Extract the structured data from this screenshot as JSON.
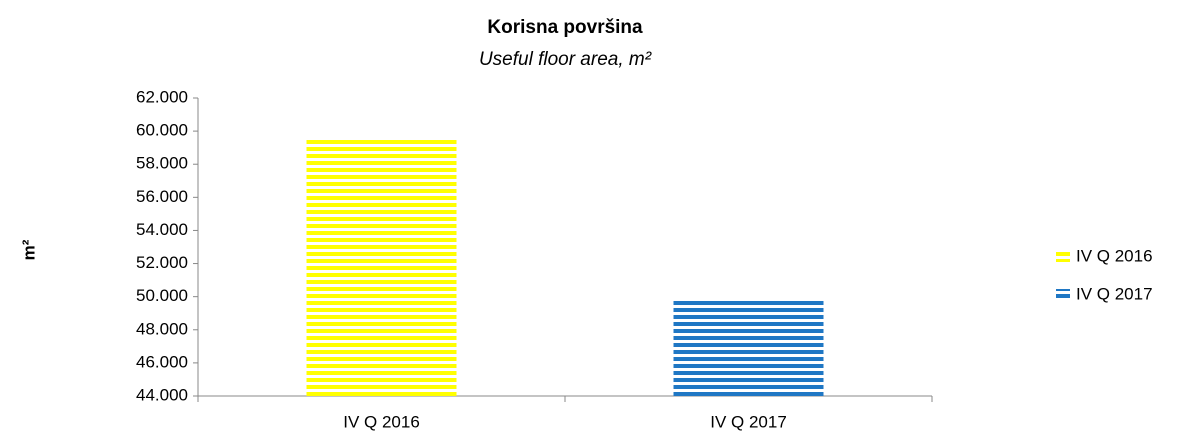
{
  "chart_data": {
    "type": "bar",
    "title": "Korisna površina",
    "subtitle": "Useful floor area, m²",
    "y_label": "m²",
    "categories": [
      "IV Q 2016",
      "IV Q 2017"
    ],
    "series": [
      {
        "name": "IV Q 2016",
        "color": "#ffff00",
        "values": [
          59500,
          null
        ]
      },
      {
        "name": "IV Q 2017",
        "color": "#1f77c4",
        "values": [
          null,
          49900
        ]
      }
    ],
    "ylim": [
      44000,
      62000
    ],
    "yticks": [
      {
        "value": 44000,
        "label": "44.000"
      },
      {
        "value": 46000,
        "label": "46.000"
      },
      {
        "value": 48000,
        "label": "48.000"
      },
      {
        "value": 50000,
        "label": "50.000"
      },
      {
        "value": 52000,
        "label": "52.000"
      },
      {
        "value": 54000,
        "label": "54.000"
      },
      {
        "value": 56000,
        "label": "56.000"
      },
      {
        "value": 58000,
        "label": "58.000"
      },
      {
        "value": 60000,
        "label": "60.000"
      },
      {
        "value": 62000,
        "label": "62.000"
      }
    ],
    "grid": false,
    "legend": "right"
  }
}
